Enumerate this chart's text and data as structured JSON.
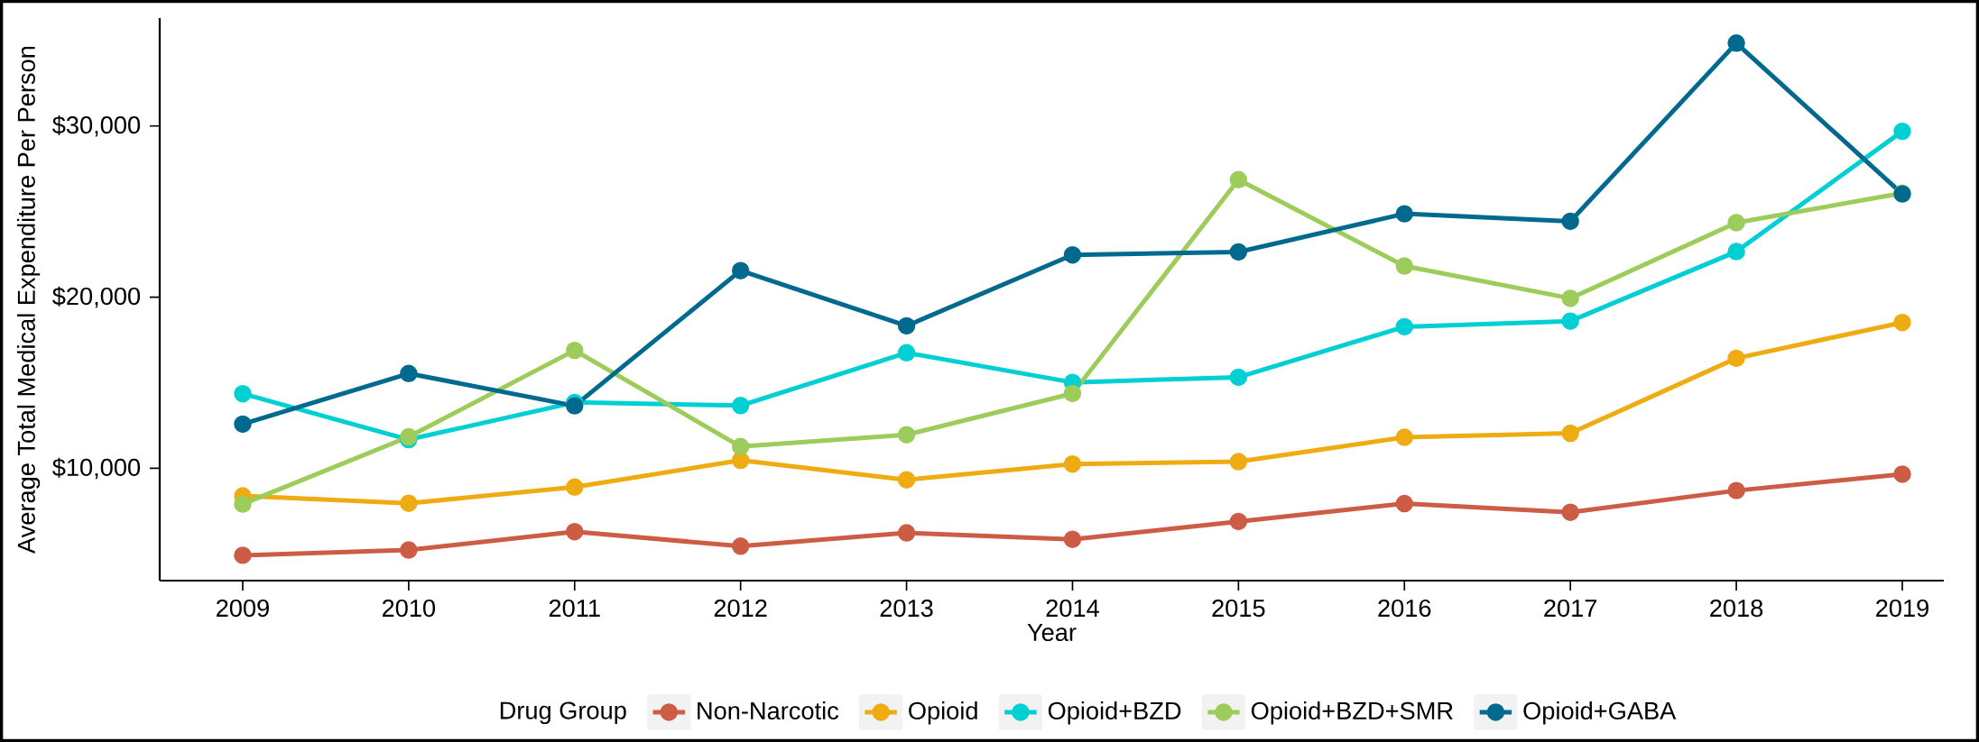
{
  "chart_data": {
    "type": "line",
    "xlabel": "Year",
    "ylabel": "Average Total Medical Expenditure Per Person",
    "legend_title": "Drug Group",
    "x": [
      2009,
      2010,
      2011,
      2012,
      2013,
      2014,
      2015,
      2016,
      2017,
      2018,
      2019
    ],
    "xlim": [
      2008.5,
      2019.25
    ],
    "xticks": [
      2009,
      2010,
      2011,
      2012,
      2013,
      2014,
      2015,
      2016,
      2017,
      2018,
      2019
    ],
    "ylim": [
      3440,
      36300
    ],
    "yticks": [
      {
        "value": 10000,
        "label": "$10,000"
      },
      {
        "value": 20000,
        "label": "$20,000"
      },
      {
        "value": 30000,
        "label": "$30,000"
      }
    ],
    "grid": false,
    "legend": "bottom",
    "marker": "circle",
    "line_style": "solid",
    "series": [
      {
        "name": "Non-Narcotic",
        "color": "#cd5c45",
        "values": [
          4920,
          5230,
          6300,
          5450,
          6230,
          5850,
          6890,
          7940,
          7430,
          8700,
          9660
        ]
      },
      {
        "name": "Opioid",
        "color": "#efab12",
        "values": [
          8390,
          7960,
          8900,
          10470,
          9330,
          10250,
          10390,
          11810,
          12050,
          16430,
          18520
        ]
      },
      {
        "name": "Opioid+BZD",
        "color": "#00cfd3",
        "values": [
          14360,
          11680,
          13850,
          13670,
          16750,
          15020,
          15320,
          18270,
          18600,
          22660,
          29690
        ]
      },
      {
        "name": "Opioid+BZD+SMR",
        "color": "#9dcc5a",
        "values": [
          7910,
          11840,
          16890,
          11270,
          11960,
          14370,
          26860,
          21820,
          19930,
          24350,
          26070
        ]
      },
      {
        "name": "Opioid+GABA",
        "color": "#006a8e",
        "values": [
          12580,
          15540,
          13650,
          21550,
          18320,
          22470,
          22640,
          24870,
          24430,
          34840,
          26030
        ]
      }
    ]
  }
}
